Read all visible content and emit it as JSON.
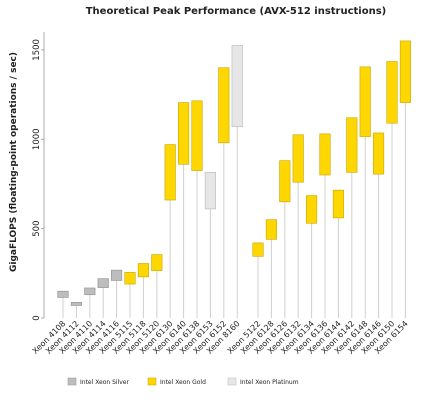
{
  "chart_data": {
    "type": "bar",
    "title": "Theoretical Peak Performance (AVX-512 instructions)",
    "ylabel": "GigaFLOPS (floating-point operations / sec)",
    "xlabel": "",
    "ylim": [
      0,
      1600
    ],
    "yticks": [
      0,
      500,
      1000,
      1500
    ],
    "legend_position": "bottom",
    "legend": [
      {
        "name": "Intel Xeon Silver",
        "color": "#bdbdbd"
      },
      {
        "name": "Intel Xeon Gold",
        "color": "#ffd700"
      },
      {
        "name": "Intel Xeon Platinum",
        "color": "#e6e6e6"
      }
    ],
    "groups": [
      {
        "bars": [
          {
            "label": "Xeon 4108",
            "low": 115,
            "high": 150,
            "tier": "Silver"
          },
          {
            "label": "Xeon 4112",
            "low": 70,
            "high": 88,
            "tier": "Silver"
          },
          {
            "label": "Xeon 4110",
            "low": 130,
            "high": 168,
            "tier": "Silver"
          },
          {
            "label": "Xeon 4114",
            "low": 170,
            "high": 220,
            "tier": "Silver"
          },
          {
            "label": "Xeon 4116",
            "low": 210,
            "high": 268,
            "tier": "Silver"
          },
          {
            "label": "Xeon 5115",
            "low": 190,
            "high": 255,
            "tier": "Gold"
          },
          {
            "label": "Xeon 5118",
            "low": 230,
            "high": 305,
            "tier": "Gold"
          },
          {
            "label": "Xeon 5120",
            "low": 265,
            "high": 355,
            "tier": "Gold"
          },
          {
            "label": "Xeon 6130",
            "low": 660,
            "high": 970,
            "tier": "Gold"
          },
          {
            "label": "Xeon 6140",
            "low": 860,
            "high": 1205,
            "tier": "Gold"
          },
          {
            "label": "Xeon 6138",
            "low": 825,
            "high": 1215,
            "tier": "Gold"
          },
          {
            "label": "Xeon 6153",
            "low": 610,
            "high": 815,
            "tier": "Platinum"
          },
          {
            "label": "Xeon 6152",
            "low": 980,
            "high": 1400,
            "tier": "Gold"
          },
          {
            "label": "Xeon 8160",
            "low": 1070,
            "high": 1525,
            "tier": "Platinum"
          }
        ]
      },
      {
        "bars": [
          {
            "label": "Xeon 5122",
            "low": 345,
            "high": 420,
            "tier": "Gold"
          },
          {
            "label": "Xeon 6128",
            "low": 440,
            "high": 550,
            "tier": "Gold"
          },
          {
            "label": "Xeon 6126",
            "low": 650,
            "high": 880,
            "tier": "Gold"
          },
          {
            "label": "Xeon 6132",
            "low": 760,
            "high": 1025,
            "tier": "Gold"
          },
          {
            "label": "Xeon 6134",
            "low": 530,
            "high": 685,
            "tier": "Gold"
          },
          {
            "label": "Xeon 6136",
            "low": 800,
            "high": 1030,
            "tier": "Gold"
          },
          {
            "label": "Xeon 6144",
            "low": 560,
            "high": 715,
            "tier": "Gold"
          },
          {
            "label": "Xeon 6142",
            "low": 815,
            "high": 1120,
            "tier": "Gold"
          },
          {
            "label": "Xeon 6148",
            "low": 1015,
            "high": 1405,
            "tier": "Gold"
          },
          {
            "label": "Xeon 6146",
            "low": 805,
            "high": 1035,
            "tier": "Gold"
          },
          {
            "label": "Xeon 6150",
            "low": 1090,
            "high": 1435,
            "tier": "Gold"
          },
          {
            "label": "Xeon 6154",
            "low": 1205,
            "high": 1550,
            "tier": "Gold"
          }
        ]
      }
    ]
  }
}
